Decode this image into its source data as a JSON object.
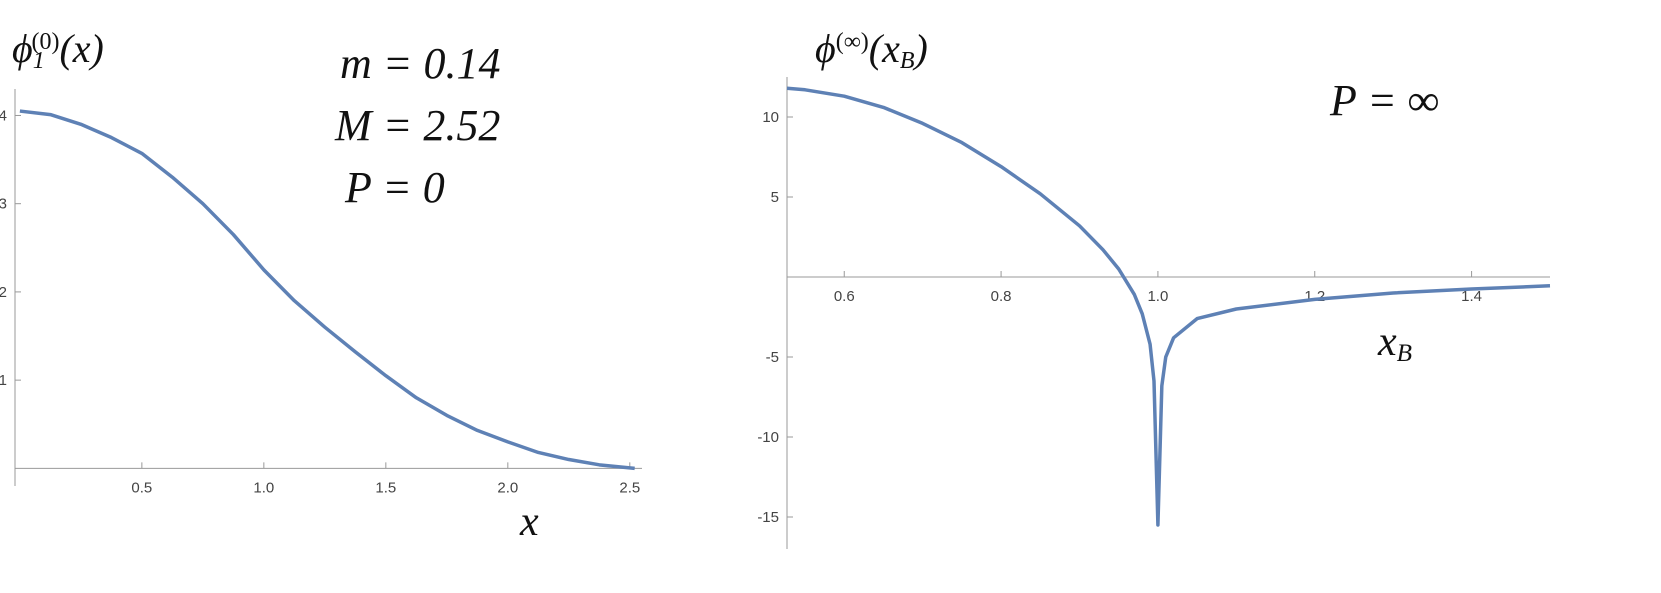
{
  "chart_data": [
    {
      "type": "line",
      "ylabel": {
        "symbol": "ϕ",
        "subscript": "1",
        "superscript": "(0)",
        "argument": "(x)"
      },
      "xlabel": {
        "symbol": "x"
      },
      "annotations": [
        "m = 0.14",
        "M = 2.52",
        "P = 0"
      ],
      "x": [
        0,
        0.125,
        0.25,
        0.375,
        0.5,
        0.625,
        0.75,
        0.875,
        1,
        1.125,
        1.25,
        1.375,
        1.5,
        1.625,
        1.75,
        1.875,
        2,
        2.125,
        2.25,
        2.375,
        2.52
      ],
      "values": [
        4.05,
        4.01,
        3.9,
        3.75,
        3.57,
        3.3,
        3.0,
        2.65,
        2.25,
        1.9,
        1.6,
        1.32,
        1.05,
        0.8,
        0.6,
        0.43,
        0.3,
        0.18,
        0.1,
        0.04,
        0
      ],
      "color": "#5e81b5",
      "xlim": [
        -0.02,
        2.55
      ],
      "ylim": [
        -0.2,
        4.3
      ],
      "xticks": [
        0.5,
        {
          "value": 1,
          "label": "1.0"
        },
        1.5,
        {
          "value": 2,
          "label": "2.0"
        },
        2.5
      ],
      "yticks": [
        1,
        2,
        3,
        4
      ]
    },
    {
      "type": "line",
      "ylabel": {
        "symbol": "ϕ",
        "superscript": "(∞)",
        "argument": "(x",
        "argument_subscript": "B",
        "close": ")"
      },
      "xlabel": {
        "symbol": "x",
        "subscript": "B"
      },
      "annotations": [
        "P = ∞"
      ],
      "x": [
        0.527,
        0.55,
        0.6,
        0.65,
        0.7,
        0.75,
        0.8,
        0.85,
        0.9,
        0.93,
        0.95,
        0.97,
        0.98,
        0.99,
        0.995,
        1.0,
        1.005,
        1.01,
        1.02,
        1.05,
        1.1,
        1.2,
        1.3,
        1.4,
        1.5
      ],
      "values": [
        11.8,
        11.7,
        11.3,
        10.6,
        9.6,
        8.4,
        6.9,
        5.2,
        3.2,
        1.7,
        0.5,
        -1.1,
        -2.3,
        -4.2,
        -6.5,
        -15.5,
        -6.8,
        -5.0,
        -3.8,
        -2.6,
        -2.0,
        -1.4,
        -1.0,
        -0.75,
        -0.55
      ],
      "color": "#5e81b5",
      "xlim": [
        0.527,
        1.5
      ],
      "ylim": [
        -17,
        12.5
      ],
      "xticks": [
        0.6,
        0.8,
        {
          "value": 1,
          "label": "1.0"
        },
        1.2,
        1.4
      ],
      "yticks": [
        -15,
        -10,
        -5,
        5,
        10
      ]
    }
  ]
}
